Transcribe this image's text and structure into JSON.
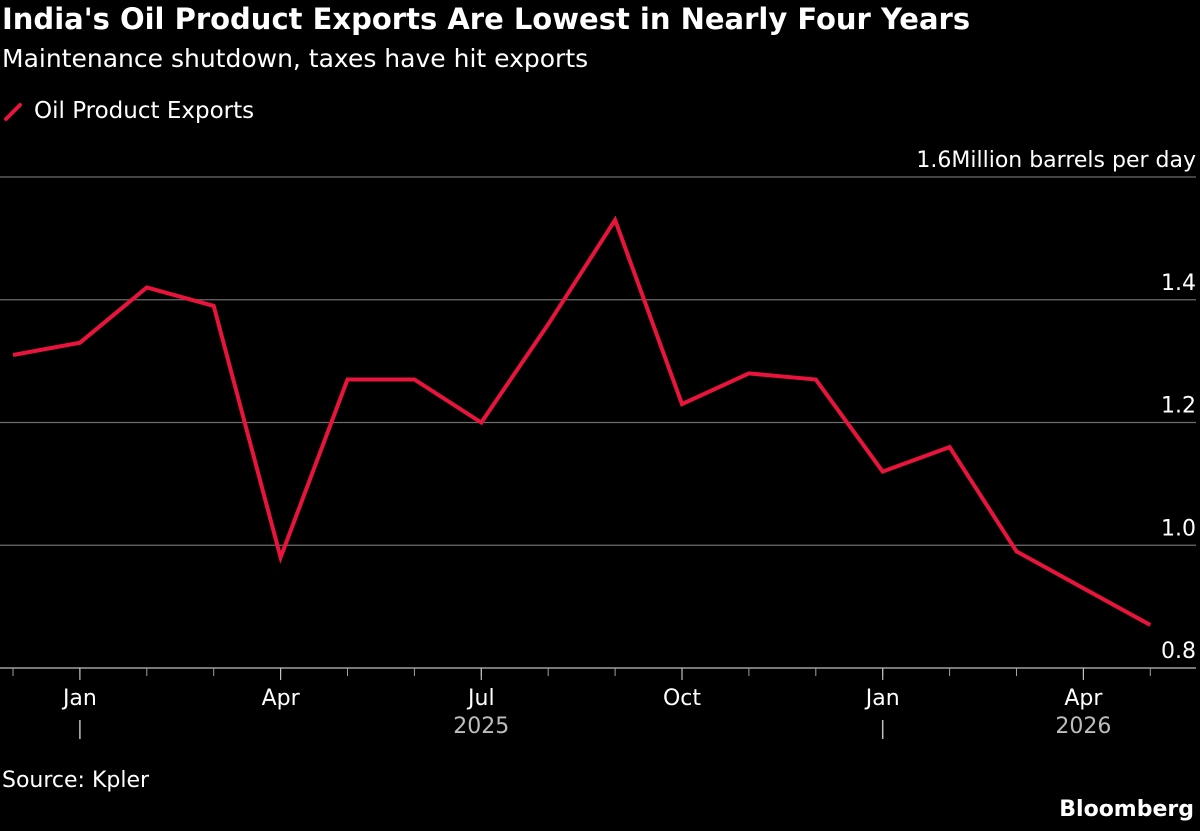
{
  "title": "India's Oil Product Exports Are Lowest in Nearly Four Years",
  "subtitle": "Maintenance shutdown, taxes have hit exports",
  "legend": {
    "label": "Oil Product Exports",
    "color": "#e8143c",
    "icon": "red-line-swatch-icon"
  },
  "source": "Source: Kpler",
  "brand": "Bloomberg",
  "colors": {
    "background": "#000000",
    "grid": "#6b6b6b",
    "text": "#ffffff",
    "line": "#e8143c"
  },
  "chart_data": {
    "type": "line",
    "series": [
      {
        "name": "Oil Product Exports",
        "x": [
          "2024-12",
          "2025-01",
          "2025-02",
          "2025-03",
          "2025-04",
          "2025-05",
          "2025-06",
          "2025-07",
          "2025-08",
          "2025-09",
          "2025-10",
          "2025-11",
          "2025-12",
          "2026-01",
          "2026-02",
          "2026-03",
          "2026-04",
          "2026-05"
        ],
        "values": [
          1.31,
          1.33,
          1.42,
          1.39,
          0.98,
          1.27,
          1.27,
          1.2,
          1.36,
          1.53,
          1.23,
          1.28,
          1.27,
          1.12,
          1.16,
          0.99,
          0.93,
          0.87
        ]
      }
    ],
    "ylim": [
      0.8,
      1.6
    ],
    "yticks": [
      {
        "value": 1.6,
        "label": "1.6Million barrels per day"
      },
      {
        "value": 1.4,
        "label": "1.4"
      },
      {
        "value": 1.2,
        "label": "1.2"
      },
      {
        "value": 1.0,
        "label": "1.0"
      },
      {
        "value": 0.8,
        "label": "0.8"
      }
    ],
    "xticks": [
      {
        "date": "2025-01",
        "label": "Jan",
        "year_marker": true
      },
      {
        "date": "2025-04",
        "label": "Apr"
      },
      {
        "date": "2025-07",
        "label": "Jul"
      },
      {
        "date": "2025-10",
        "label": "Oct"
      },
      {
        "date": "2026-01",
        "label": "Jan",
        "year_marker": true
      },
      {
        "date": "2026-04",
        "label": "Apr"
      }
    ],
    "year_labels": [
      {
        "date": "2025-07",
        "label": "2025"
      },
      {
        "date": "2026-04",
        "label": "2026"
      }
    ],
    "grid": true,
    "legend_position": "top-left"
  }
}
